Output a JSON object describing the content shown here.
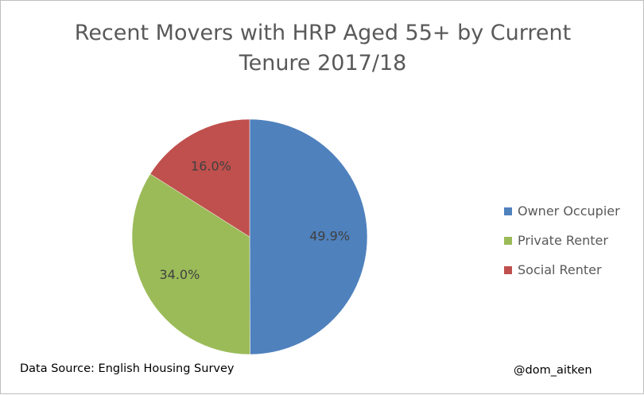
{
  "chart_data": {
    "type": "pie",
    "title": [
      "Recent Movers with HRP Aged 55+ by Current",
      "Tenure 2017/18"
    ],
    "slices": [
      {
        "label": "Owner Occupier",
        "value": 49.9,
        "display": "49.9%",
        "color": "#4f81bd"
      },
      {
        "label": "Private Renter",
        "value": 34.0,
        "display": "34.0%",
        "color": "#9bbb59"
      },
      {
        "label": "Social Renter",
        "value": 16.0,
        "display": "16.0%",
        "color": "#c0504d"
      }
    ],
    "legend_position": "right",
    "start_angle": "12 o'clock",
    "direction": "clockwise"
  },
  "footer": {
    "source": "Data Source: English Housing Survey",
    "handle": "@dom_aitken"
  }
}
